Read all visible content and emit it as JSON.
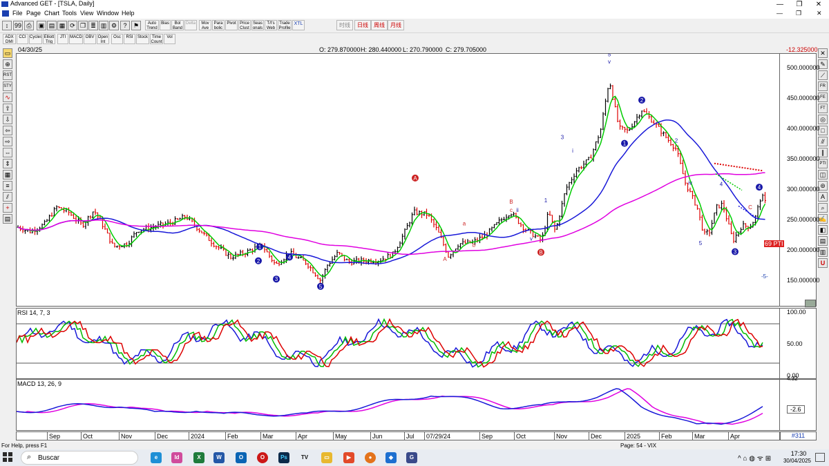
{
  "window": {
    "title": "Advanced GET - [TSLA, Daily]",
    "min": "—",
    "max": "❐",
    "close": "✕"
  },
  "menu": [
    "File",
    "Page",
    "Chart",
    "Tools",
    "View",
    "Window",
    "Help"
  ],
  "toolbar": {
    "study_buttons": [
      "Auto Trend",
      "Bias",
      "Bol Band",
      "Delta",
      "Mov Ave",
      "Para bolic",
      "Pivot",
      "Price Clust",
      "Seas onals",
      "T/I's Web",
      "Trade Profile",
      "XTL"
    ],
    "timeframes": [
      "时线",
      "日线",
      "周线",
      "月线"
    ],
    "indicators": [
      "ADX DMI",
      "CCI",
      "Cycles",
      "Elliott Trig",
      "JTI",
      "MACD",
      "OBV",
      "Open Int",
      "Osc",
      "RSI",
      "Stock",
      "Time Count",
      "Vol"
    ]
  },
  "chart": {
    "date": "04/30/25",
    "ohlc": {
      "o": "O: 279.870000",
      "h": "H: 280.440000",
      "l": "L: 270.790000",
      "c": "C: 279.705000"
    },
    "change": "-12.325000",
    "price_scale": [
      "500.000000",
      "450.000000",
      "400.000000",
      "350.000000",
      "300.000000",
      "250.000000",
      "200.000000",
      "150.000000"
    ],
    "price_range": [
      108,
      522
    ],
    "last_price": 279.7,
    "pti": "69 PTI",
    "minus5": "-5-",
    "wave_labels": {
      "blue_circles": [
        "1",
        "2",
        "3",
        "4",
        "5",
        "A",
        "B",
        "2",
        "1",
        "3",
        "4"
      ],
      "text_labels": [
        "5",
        "v",
        "iii",
        "A",
        "B",
        "C",
        "a",
        "b",
        "c",
        "1",
        "2",
        "3",
        "4",
        "5",
        "iv",
        "ii",
        "i"
      ]
    },
    "colors": {
      "up": "#000000",
      "down": "#dd0000",
      "ma_fast": "#00cc00",
      "ma_mid": "#1818d8",
      "ma_slow": "#e000e0"
    }
  },
  "rsi": {
    "label": "RSI 14, 7, 3",
    "scale": [
      "100.00",
      "50.00",
      "0.00"
    ]
  },
  "macd": {
    "label": "MACD 13, 26, 9",
    "scale": [
      "4.32",
      "-2.6"
    ]
  },
  "date_axis": [
    "Sep",
    "Oct",
    "Nov",
    "Dec",
    "2024",
    "Feb",
    "Mar",
    "Apr",
    "May",
    "Jun",
    "Jul",
    "07/29/24",
    "Sep",
    "Oct",
    "Nov",
    "Dec",
    "2025",
    "Feb",
    "Mar",
    "Apr"
  ],
  "bar_count": "#311",
  "status": {
    "help": "For Help, press F1",
    "page": "Page: 54 - VIX"
  },
  "taskbar": {
    "search": "Buscar",
    "time": "17:30",
    "date": "30/04/2025"
  }
}
